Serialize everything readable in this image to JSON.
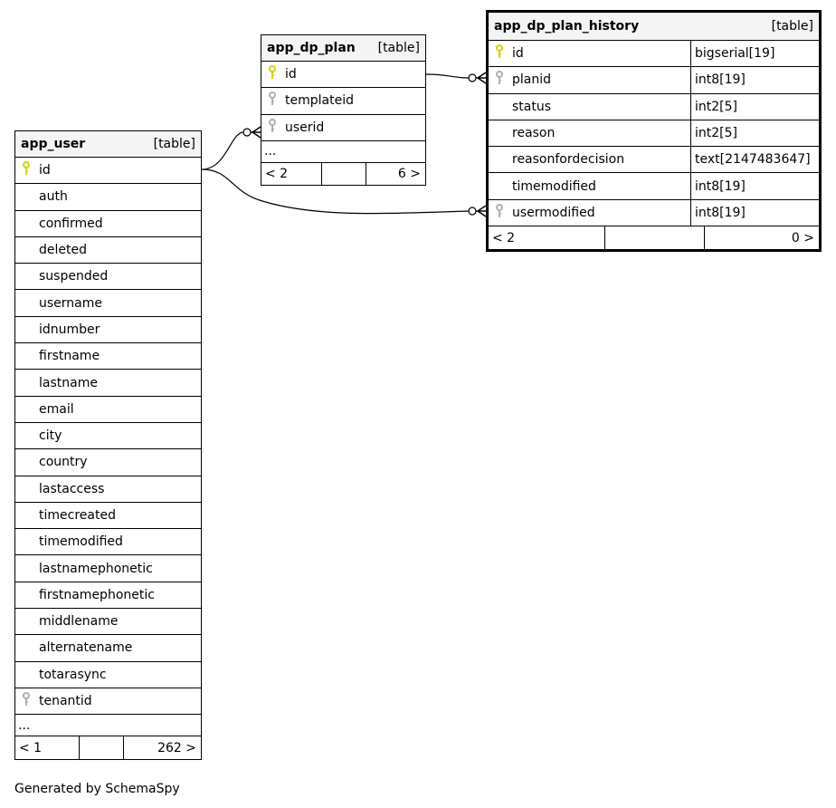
{
  "tables": [
    {
      "id": "app_user",
      "name": "app_user",
      "type_label": "[table]",
      "selected": false,
      "columns": [
        {
          "name": "id",
          "key": "primary"
        },
        {
          "name": "auth"
        },
        {
          "name": "confirmed"
        },
        {
          "name": "deleted"
        },
        {
          "name": "suspended"
        },
        {
          "name": "username"
        },
        {
          "name": "idnumber"
        },
        {
          "name": "firstname"
        },
        {
          "name": "lastname"
        },
        {
          "name": "email"
        },
        {
          "name": "city"
        },
        {
          "name": "country"
        },
        {
          "name": "lastaccess"
        },
        {
          "name": "timecreated"
        },
        {
          "name": "timemodified"
        },
        {
          "name": "lastnamephonetic"
        },
        {
          "name": "firstnamephonetic"
        },
        {
          "name": "middlename"
        },
        {
          "name": "alternatename"
        },
        {
          "name": "totarasync"
        },
        {
          "name": "tenantid",
          "key": "foreign"
        }
      ],
      "more": "...",
      "parents": "< 1",
      "children": "262 >"
    },
    {
      "id": "app_dp_plan",
      "name": "app_dp_plan",
      "type_label": "[table]",
      "selected": false,
      "columns": [
        {
          "name": "id",
          "key": "primary"
        },
        {
          "name": "templateid",
          "key": "foreign"
        },
        {
          "name": "userid",
          "key": "foreign"
        }
      ],
      "more": "...",
      "parents": "< 2",
      "children": "6 >"
    },
    {
      "id": "app_dp_plan_history",
      "name": "app_dp_plan_history",
      "type_label": "[table]",
      "selected": true,
      "columns": [
        {
          "name": "id",
          "key": "primary",
          "type": "bigserial[19]"
        },
        {
          "name": "planid",
          "key": "foreign",
          "type": "int8[19]"
        },
        {
          "name": "status",
          "type": "int2[5]"
        },
        {
          "name": "reason",
          "type": "int2[5]"
        },
        {
          "name": "reasonfordecision",
          "type": "text[2147483647]"
        },
        {
          "name": "timemodified",
          "type": "int8[19]"
        },
        {
          "name": "usermodified",
          "key": "foreign",
          "type": "int8[19]"
        }
      ],
      "parents": "< 2",
      "children": "0 >"
    }
  ],
  "relationships": [
    {
      "from": "app_user.id",
      "to": "app_dp_plan.userid"
    },
    {
      "from": "app_user.id",
      "to": "app_dp_plan_history.usermodified"
    },
    {
      "from": "app_dp_plan.id",
      "to": "app_dp_plan_history.planid"
    }
  ],
  "colors": {
    "primary_key": "#d4d400",
    "foreign_key": "#b0b0b0",
    "header_bg": "#f4f4f4"
  },
  "footer_text": "Generated by SchemaSpy"
}
